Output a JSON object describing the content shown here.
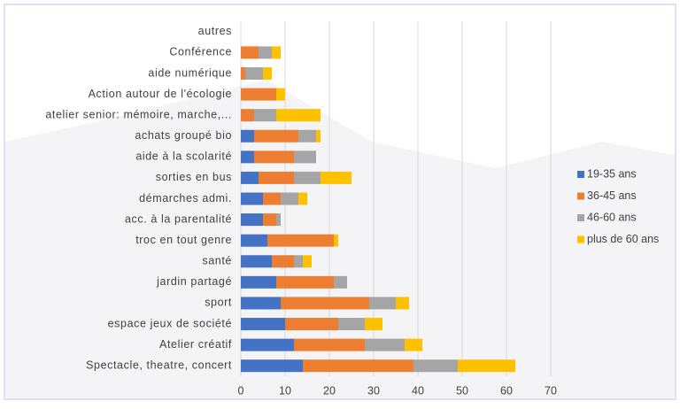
{
  "chart_data": {
    "type": "stacked-barh",
    "categories": [
      "autres",
      "Conférence",
      "aide numérique",
      "Action autour de l'écologie",
      "atelier senior: mémoire, marche,...",
      "achats groupé bio",
      "aide à la scolarité",
      "sorties en bus",
      "démarches admi.",
      "acc. à la parentalité",
      "troc en tout genre",
      "santé",
      "jardin partagé",
      "sport",
      "espace jeux de société",
      "Atelier créatif",
      "Spectacle, theatre, concert"
    ],
    "series": [
      {
        "name": "19-35 ans",
        "color": "#4472c4",
        "values": [
          0,
          0,
          0,
          0,
          0,
          3,
          3,
          4,
          5,
          5,
          6,
          7,
          8,
          9,
          10,
          12,
          14
        ]
      },
      {
        "name": "36-45 ans",
        "color": "#ed7d31",
        "values": [
          0,
          4,
          1,
          8,
          3,
          10,
          9,
          8,
          4,
          3,
          15,
          5,
          13,
          20,
          12,
          16,
          25
        ]
      },
      {
        "name": "46-60 ans",
        "color": "#a5a5a5",
        "values": [
          0,
          3,
          4,
          0,
          5,
          4,
          5,
          6,
          4,
          1,
          0,
          2,
          3,
          6,
          6,
          9,
          10
        ]
      },
      {
        "name": "plus de 60 ans",
        "color": "#ffc000",
        "values": [
          0,
          2,
          2,
          2,
          10,
          1,
          0,
          7,
          2,
          0,
          1,
          2,
          0,
          3,
          4,
          4,
          13
        ]
      }
    ],
    "xlim": [
      0,
      70
    ],
    "xticks": [
      0,
      10,
      20,
      30,
      40,
      50,
      60,
      70
    ],
    "grid": true,
    "legend": "right"
  }
}
